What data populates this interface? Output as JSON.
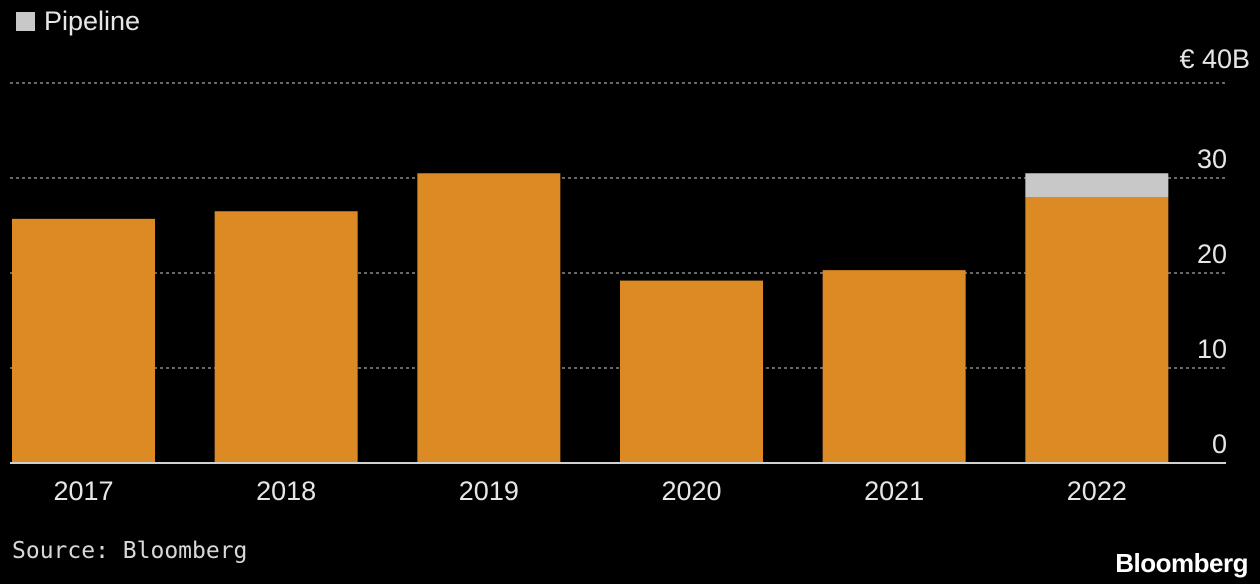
{
  "legend": {
    "label": "Pipeline",
    "color": "#c8c8c8"
  },
  "source": "Source: Bloomberg",
  "logo": "Bloomberg",
  "colors": {
    "bar": "#dc8a24",
    "pipeline": "#c8c8c8",
    "background": "#000000",
    "grid": "#8a8a8a",
    "text": "#e6e6e6"
  },
  "chart_data": {
    "type": "bar",
    "stacked": true,
    "categories": [
      "2017",
      "2018",
      "2019",
      "2020",
      "2021",
      "2022"
    ],
    "series": [
      {
        "values": [
          25.7,
          26.5,
          30.5,
          19.2,
          20.3,
          28.0
        ],
        "color": "#dc8a24"
      },
      {
        "name": "Pipeline",
        "values": [
          0,
          0,
          0,
          0,
          0,
          2.5
        ],
        "color": "#c8c8c8"
      }
    ],
    "ylim": [
      0,
      40
    ],
    "yticks": [
      0,
      10,
      20,
      30,
      40
    ],
    "ytick_labels": [
      "0",
      "10",
      "20",
      "30",
      "€ 40B"
    ],
    "y_axis_position": "right",
    "grid": true,
    "legend_position": "top-left"
  }
}
